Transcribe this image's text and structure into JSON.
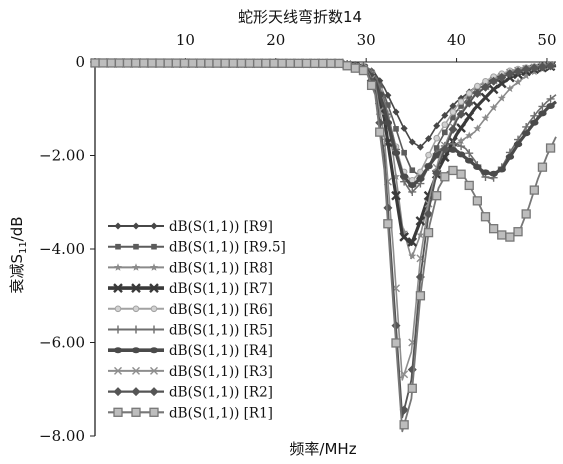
{
  "chart_data": {
    "type": "line",
    "title": "蛇形天线弯折数14",
    "xlabel": "频率/MHz",
    "ylabel_main": "衰减S",
    "ylabel_sub": "11",
    "ylabel_tail": "/dB",
    "xlim": [
      0,
      51
    ],
    "ylim": [
      -8,
      0
    ],
    "x_ticks": [
      "10",
      "20",
      "30",
      "40",
      "50"
    ],
    "x_tick_values": [
      10,
      20,
      30,
      40,
      50
    ],
    "y_ticks": [
      "0",
      "−2.00",
      "−4.00",
      "−6.00",
      "−8.00"
    ],
    "y_tick_values": [
      0,
      -2,
      -4,
      -6,
      -8
    ],
    "x_axis_position": "top",
    "grid": false,
    "legend_placement": "left",
    "series": [
      {
        "name": "dB(S(1,1)) [R9]",
        "marker": "diamond",
        "x": [
          0,
          27,
          30,
          31,
          32,
          33,
          34,
          35,
          36,
          37,
          38,
          40,
          42,
          44,
          46,
          48,
          50,
          51
        ],
        "y": [
          -0.02,
          -0.02,
          -0.1,
          -0.25,
          -0.55,
          -0.95,
          -1.35,
          -1.7,
          -1.82,
          -1.62,
          -1.3,
          -0.85,
          -0.55,
          -0.35,
          -0.2,
          -0.12,
          -0.08,
          -0.06
        ]
      },
      {
        "name": "dB(S(1,1)) [R9.5]",
        "marker": "square-small",
        "x": [
          0,
          27,
          30,
          31,
          32,
          33,
          34,
          35,
          36,
          37,
          38,
          40,
          42,
          44,
          46,
          48,
          50,
          51
        ],
        "y": [
          -0.02,
          -0.02,
          -0.1,
          -0.3,
          -0.7,
          -1.25,
          -1.85,
          -2.3,
          -2.45,
          -2.2,
          -1.75,
          -1.05,
          -0.62,
          -0.38,
          -0.22,
          -0.14,
          -0.09,
          -0.07
        ]
      },
      {
        "name": "dB(S(1,1)) [R8]",
        "marker": "star",
        "x": [
          0,
          27,
          30,
          31,
          32,
          33,
          34,
          35,
          36,
          37,
          38,
          39,
          40,
          42,
          44,
          46,
          48,
          50,
          51
        ],
        "y": [
          -0.02,
          -0.02,
          -0.12,
          -0.35,
          -0.9,
          -2.0,
          -3.5,
          -4.2,
          -3.7,
          -2.9,
          -2.3,
          -1.95,
          -1.75,
          -1.5,
          -1.0,
          -0.55,
          -0.25,
          -0.12,
          -0.09
        ]
      },
      {
        "name": "dB(S(1,1)) [R7]",
        "marker": "cross-bold",
        "x": [
          0,
          27,
          30,
          31,
          32,
          33,
          34,
          35,
          36,
          37,
          38,
          40,
          42,
          44,
          46,
          48,
          50,
          51
        ],
        "y": [
          -0.02,
          -0.03,
          -0.15,
          -0.45,
          -1.2,
          -2.5,
          -3.7,
          -3.9,
          -3.4,
          -2.8,
          -2.3,
          -1.55,
          -1.0,
          -0.6,
          -0.32,
          -0.18,
          -0.1,
          -0.08
        ]
      },
      {
        "name": "dB(S(1,1)) [R6]",
        "marker": "circle",
        "x": [
          0,
          27,
          30,
          31,
          32,
          33,
          34,
          35,
          36,
          37,
          38,
          40,
          42,
          44,
          46,
          48,
          50,
          51
        ],
        "y": [
          -0.02,
          -0.02,
          -0.12,
          -0.35,
          -0.85,
          -1.6,
          -2.3,
          -2.55,
          -2.35,
          -1.95,
          -1.55,
          -0.95,
          -0.55,
          -0.32,
          -0.18,
          -0.11,
          -0.07,
          -0.06
        ]
      },
      {
        "name": "dB(S(1,1)) [R5]",
        "marker": "plus",
        "x": [
          0,
          27,
          30,
          31,
          32,
          33,
          34,
          35,
          36,
          37,
          38,
          39,
          40,
          41,
          42,
          43,
          44,
          45,
          46,
          47,
          48,
          49,
          50,
          51
        ],
        "y": [
          -0.02,
          -0.02,
          -0.1,
          -0.3,
          -0.8,
          -1.6,
          -2.5,
          -2.8,
          -2.6,
          -2.2,
          -1.9,
          -1.75,
          -1.75,
          -1.85,
          -2.1,
          -2.45,
          -2.5,
          -2.25,
          -1.9,
          -1.6,
          -1.3,
          -1.05,
          -0.85,
          -0.7
        ]
      },
      {
        "name": "dB(S(1,1)) [R4]",
        "marker": "ellipse-bold",
        "x": [
          0,
          27,
          30,
          31,
          32,
          33,
          34,
          35,
          36,
          37,
          38,
          39,
          40,
          41,
          42,
          43,
          44,
          45,
          46,
          47,
          48,
          49,
          50,
          51
        ],
        "y": [
          -0.02,
          -0.03,
          -0.15,
          -0.4,
          -1.0,
          -1.75,
          -2.4,
          -2.65,
          -2.5,
          -2.2,
          -1.95,
          -1.85,
          -1.9,
          -2.05,
          -2.2,
          -2.35,
          -2.4,
          -2.3,
          -2.0,
          -1.7,
          -1.45,
          -1.2,
          -1.0,
          -0.85
        ]
      },
      {
        "name": "dB(S(1,1)) [R3]",
        "marker": "x",
        "x": [
          0,
          27,
          30,
          31,
          32,
          33,
          34,
          35,
          36,
          37,
          38,
          40,
          42,
          44,
          46,
          48,
          50,
          51
        ],
        "y": [
          -0.02,
          -0.03,
          -0.15,
          -0.5,
          -1.6,
          -4.0,
          -6.8,
          -6.2,
          -4.2,
          -2.9,
          -2.1,
          -1.2,
          -0.7,
          -0.4,
          -0.22,
          -0.13,
          -0.08,
          -0.06
        ]
      },
      {
        "name": "dB(S(1,1)) [R2]",
        "marker": "diamond-bold",
        "x": [
          0,
          27,
          30,
          31,
          32,
          33,
          34,
          35,
          36,
          37,
          38,
          40,
          42,
          44,
          46,
          48,
          50,
          51
        ],
        "y": [
          -0.02,
          -0.03,
          -0.15,
          -0.6,
          -2.0,
          -4.8,
          -7.6,
          -6.8,
          -4.6,
          -3.1,
          -2.2,
          -1.25,
          -0.72,
          -0.42,
          -0.24,
          -0.14,
          -0.09,
          -0.07
        ]
      },
      {
        "name": "dB(S(1,1)) [R1]",
        "marker": "square-big",
        "x": [
          0,
          27,
          30,
          31,
          32,
          33,
          34,
          35,
          36,
          37,
          38,
          39,
          40,
          41,
          42,
          43,
          44,
          45,
          46,
          47,
          48,
          49,
          50,
          51
        ],
        "y": [
          -0.02,
          -0.03,
          -0.2,
          -0.7,
          -2.3,
          -5.2,
          -7.9,
          -7.2,
          -5.0,
          -3.5,
          -2.7,
          -2.35,
          -2.3,
          -2.5,
          -2.85,
          -3.25,
          -3.55,
          -3.7,
          -3.75,
          -3.6,
          -3.1,
          -2.5,
          -2.0,
          -1.6
        ]
      }
    ]
  }
}
